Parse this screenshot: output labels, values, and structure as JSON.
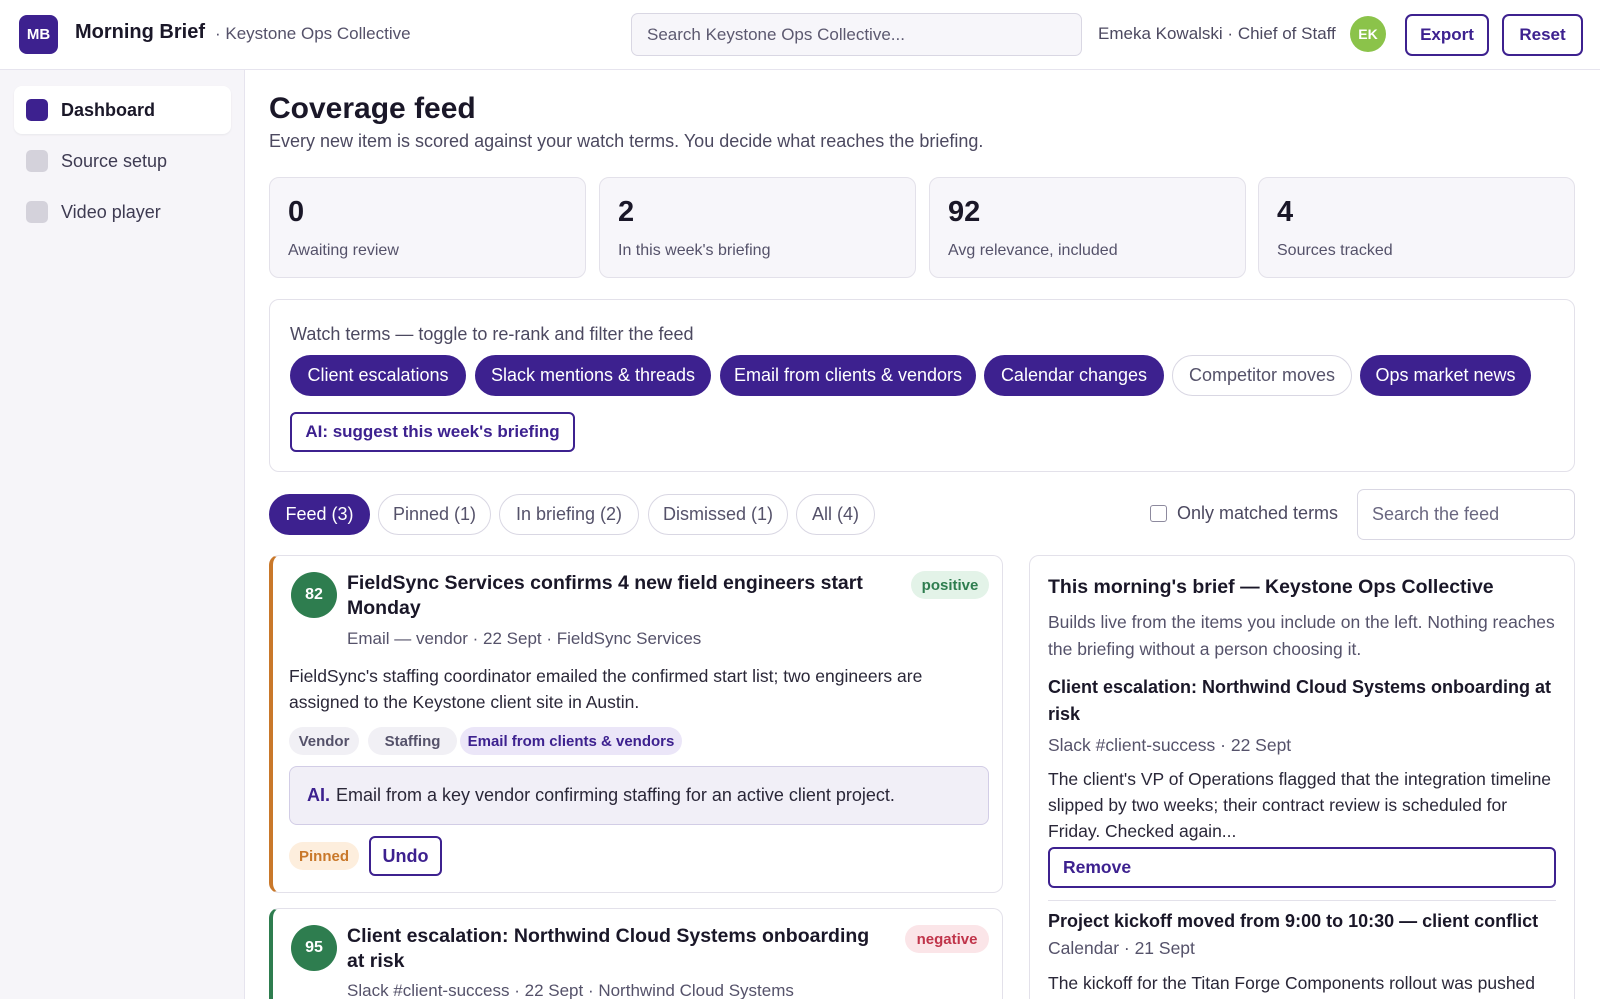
{
  "header": {
    "logo_text": "MB",
    "app_title": "Morning Brief",
    "org": "· Keystone Ops Collective",
    "search_placeholder": "Search Keystone Ops Collective...",
    "user": "Emeka Kowalski · Chief of Staff",
    "avatar": "EK",
    "export_label": "Export",
    "reset_label": "Reset"
  },
  "sidebar": {
    "items": [
      {
        "label": "Dashboard",
        "active": true
      },
      {
        "label": "Source setup",
        "active": false
      },
      {
        "label": "Video player",
        "active": false
      }
    ]
  },
  "main": {
    "title": "Coverage feed",
    "subtitle": "Every new item is scored against your watch terms. You decide what reaches the briefing."
  },
  "stats": [
    {
      "value": "0",
      "label": "Awaiting review"
    },
    {
      "value": "2",
      "label": "In this week's briefing"
    },
    {
      "value": "92",
      "label": "Avg relevance, included"
    },
    {
      "value": "4",
      "label": "Sources tracked"
    }
  ],
  "terms": {
    "heading": "Watch terms — toggle to re-rank and filter the feed",
    "chips": [
      {
        "label": "Client escalations",
        "on": true
      },
      {
        "label": "Slack mentions & threads",
        "on": true
      },
      {
        "label": "Email from clients & vendors",
        "on": true
      },
      {
        "label": "Calendar changes",
        "on": true
      },
      {
        "label": "Competitor moves",
        "on": false
      },
      {
        "label": "Ops market news",
        "on": true
      }
    ],
    "ai_suggest": "AI: suggest this week's briefing"
  },
  "tabs": [
    {
      "label": "Feed (3)",
      "active": true
    },
    {
      "label": "Pinned (1)",
      "active": false
    },
    {
      "label": "In briefing (2)",
      "active": false
    },
    {
      "label": "Dismissed (1)",
      "active": false
    },
    {
      "label": "All (4)",
      "active": false
    }
  ],
  "filters": {
    "only_matched_label": "Only matched terms",
    "feed_search_placeholder": "Search the feed"
  },
  "feed": [
    {
      "score": "82",
      "title": "FieldSync Services confirms 4 new field engineers start Monday",
      "sentiment": "positive",
      "meta": "Email — vendor · 22 Sept · FieldSync Services",
      "body": "FieldSync's staffing coordinator emailed the confirmed start list; two engineers are assigned to the Keystone client site in Austin.",
      "tags": [
        "Vendor",
        "Staffing",
        "Email from clients & vendors"
      ],
      "ai_prefix": "AI.",
      "ai_note": "Email from a key vendor confirming staffing for an active client project.",
      "pinned_label": "Pinned",
      "undo_label": "Undo"
    },
    {
      "score": "95",
      "title": "Client escalation: Northwind Cloud Systems onboarding at risk",
      "sentiment": "negative",
      "meta": "Slack #client-success · 22 Sept · Northwind Cloud Systems"
    }
  ],
  "brief": {
    "title": "This morning's brief — Keystone Ops Collective",
    "subtitle": "Builds live from the items you include on the left. Nothing reaches the briefing without a person choosing it.",
    "items": [
      {
        "title": "Client escalation: Northwind Cloud Systems onboarding at risk",
        "meta": "Slack #client-success · 22 Sept",
        "body": "The client's VP of Operations flagged that the integration timeline slipped by two weeks; their contract review is scheduled for Friday. Checked again...",
        "remove_label": "Remove"
      },
      {
        "title": "Project kickoff moved from 9:00 to 10:30 — client conflict",
        "meta": "Calendar · 21 Sept",
        "body": "The kickoff for the Titan Forge Components rollout was pushed"
      }
    ]
  },
  "colors": {
    "accent": "#3d218f",
    "score_green": "#2e7d4f",
    "pinned_orange": "#c9782a",
    "negative_red": "#c0344a"
  }
}
